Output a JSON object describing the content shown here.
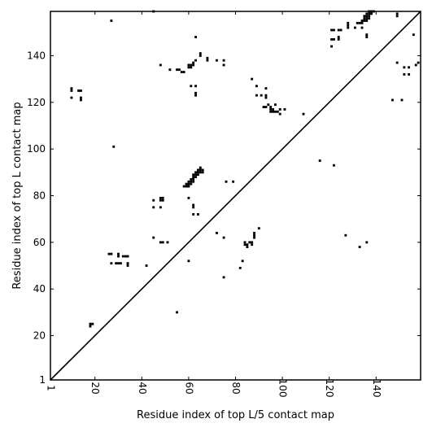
{
  "chart_data": {
    "type": "scatter",
    "xlabel": "Residue index of top L/5 contact map",
    "ylabel": "Residue index of top L contact map",
    "xlim": [
      1,
      159
    ],
    "ylim": [
      1,
      159
    ],
    "x_ticks": [
      1,
      20,
      40,
      60,
      80,
      100,
      120,
      140
    ],
    "y_ticks": [
      1,
      20,
      40,
      60,
      80,
      100,
      120,
      140
    ],
    "grid": false,
    "diagonal": true,
    "marker": "square",
    "color": "#000000",
    "points_lower": [
      [
        18,
        24
      ],
      [
        18,
        25
      ],
      [
        19,
        25
      ],
      [
        26,
        55
      ],
      [
        27,
        55
      ],
      [
        27,
        51
      ],
      [
        30,
        55
      ],
      [
        30,
        54
      ],
      [
        29,
        51
      ],
      [
        30,
        51
      ],
      [
        31,
        51
      ],
      [
        32,
        54
      ],
      [
        33,
        54
      ],
      [
        34,
        54
      ],
      [
        34,
        51
      ],
      [
        34,
        50
      ],
      [
        28,
        101
      ],
      [
        42,
        50
      ],
      [
        45,
        62
      ],
      [
        45,
        78
      ],
      [
        45,
        75
      ],
      [
        48,
        60
      ],
      [
        49,
        60
      ],
      [
        51,
        60
      ],
      [
        48,
        75
      ],
      [
        48,
        78
      ],
      [
        48,
        79
      ],
      [
        49,
        79
      ],
      [
        49,
        78
      ],
      [
        55,
        30
      ],
      [
        60,
        52
      ],
      [
        60,
        79
      ],
      [
        62,
        76
      ],
      [
        62,
        75
      ],
      [
        62,
        72
      ],
      [
        64,
        72
      ],
      [
        58,
        84
      ],
      [
        59,
        84
      ],
      [
        59,
        85
      ],
      [
        60,
        84
      ],
      [
        60,
        85
      ],
      [
        60,
        86
      ],
      [
        61,
        85
      ],
      [
        61,
        86
      ],
      [
        61,
        87
      ],
      [
        62,
        86
      ],
      [
        62,
        87
      ],
      [
        62,
        88
      ],
      [
        62,
        89
      ],
      [
        63,
        88
      ],
      [
        63,
        89
      ],
      [
        63,
        90
      ],
      [
        64,
        89
      ],
      [
        64,
        90
      ],
      [
        64,
        91
      ],
      [
        65,
        90
      ],
      [
        65,
        91
      ],
      [
        65,
        92
      ],
      [
        66,
        90
      ],
      [
        66,
        91
      ],
      [
        72,
        64
      ],
      [
        75,
        62
      ],
      [
        75,
        45
      ],
      [
        76,
        86
      ],
      [
        79,
        86
      ],
      [
        82,
        49
      ],
      [
        83,
        52
      ],
      [
        84,
        60
      ],
      [
        84,
        59
      ],
      [
        85,
        58
      ],
      [
        85,
        59
      ],
      [
        86,
        60
      ],
      [
        87,
        59
      ],
      [
        87,
        60
      ],
      [
        88,
        62
      ],
      [
        88,
        63
      ],
      [
        88,
        64
      ],
      [
        90,
        66
      ],
      [
        116,
        95
      ],
      [
        122,
        93
      ],
      [
        127,
        63
      ],
      [
        133,
        58
      ],
      [
        136,
        60
      ]
    ],
    "points_upper": [
      [
        27,
        155
      ],
      [
        45,
        159
      ],
      [
        10,
        126
      ],
      [
        10,
        125
      ],
      [
        10,
        122
      ],
      [
        13,
        125
      ],
      [
        14,
        125
      ],
      [
        14,
        122
      ],
      [
        14,
        121
      ],
      [
        48,
        136
      ],
      [
        52,
        134
      ],
      [
        55,
        134
      ],
      [
        56,
        134
      ],
      [
        57,
        133
      ],
      [
        58,
        133
      ],
      [
        60,
        135
      ],
      [
        60,
        136
      ],
      [
        61,
        135
      ],
      [
        61,
        136
      ],
      [
        62,
        136
      ],
      [
        62,
        137
      ],
      [
        63,
        138
      ],
      [
        63,
        127
      ],
      [
        61,
        127
      ],
      [
        63,
        124
      ],
      [
        63,
        123
      ],
      [
        63,
        148
      ],
      [
        65,
        141
      ],
      [
        65,
        140
      ],
      [
        68,
        139
      ],
      [
        68,
        138
      ],
      [
        72,
        138
      ],
      [
        75,
        138
      ],
      [
        75,
        136
      ],
      [
        87,
        130
      ],
      [
        89,
        127
      ],
      [
        89,
        123
      ],
      [
        91,
        123
      ],
      [
        93,
        126
      ],
      [
        93,
        123
      ],
      [
        93,
        122
      ],
      [
        92,
        118
      ],
      [
        93,
        118
      ],
      [
        94,
        119
      ],
      [
        95,
        118
      ],
      [
        95,
        117
      ],
      [
        95,
        116
      ],
      [
        96,
        116
      ],
      [
        96,
        117
      ],
      [
        97,
        116
      ],
      [
        97,
        119
      ],
      [
        98,
        116
      ],
      [
        99,
        117
      ],
      [
        99,
        115
      ],
      [
        101,
        117
      ],
      [
        109,
        115
      ],
      [
        121,
        144
      ],
      [
        121,
        147
      ],
      [
        122,
        147
      ],
      [
        121,
        151
      ],
      [
        122,
        151
      ],
      [
        124,
        151
      ],
      [
        125,
        151
      ],
      [
        124,
        148
      ],
      [
        124,
        147
      ],
      [
        128,
        154
      ],
      [
        128,
        153
      ],
      [
        128,
        152
      ],
      [
        131,
        152
      ],
      [
        132,
        154
      ],
      [
        133,
        154
      ],
      [
        134,
        154
      ],
      [
        134,
        152
      ],
      [
        134,
        155
      ],
      [
        135,
        155
      ],
      [
        135,
        156
      ],
      [
        135,
        157
      ],
      [
        136,
        155
      ],
      [
        136,
        156
      ],
      [
        136,
        157
      ],
      [
        136,
        158
      ],
      [
        137,
        156
      ],
      [
        137,
        157
      ],
      [
        137,
        158
      ],
      [
        137,
        159
      ],
      [
        138,
        158
      ],
      [
        138,
        159
      ],
      [
        139,
        159
      ],
      [
        136,
        148
      ],
      [
        136,
        149
      ],
      [
        147,
        121
      ],
      [
        151,
        121
      ],
      [
        149,
        137
      ],
      [
        149,
        157
      ],
      [
        149,
        158
      ],
      [
        152,
        135
      ],
      [
        152,
        132
      ],
      [
        154,
        135
      ],
      [
        154,
        132
      ],
      [
        156,
        149
      ],
      [
        157,
        136
      ],
      [
        158,
        137
      ]
    ]
  }
}
